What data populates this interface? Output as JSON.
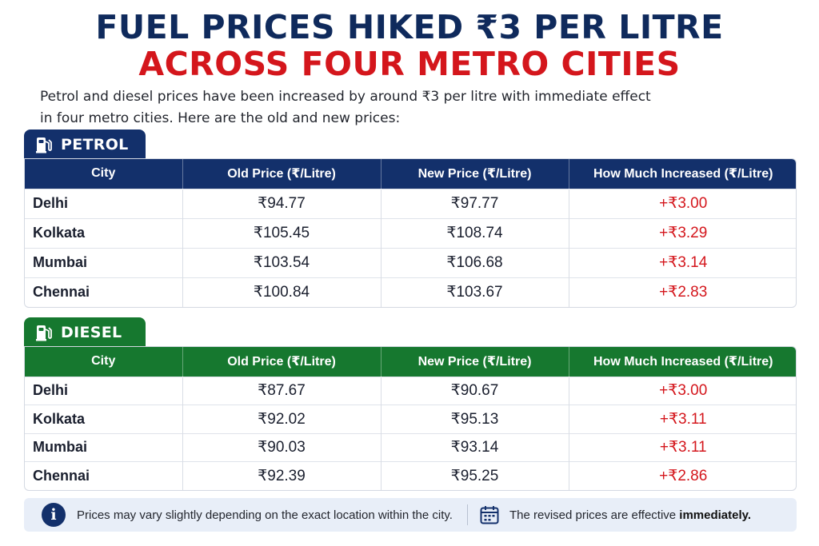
{
  "title_line1": "FUEL PRICES HIKED ₹3 PER LITRE",
  "title_line2": "ACROSS FOUR METRO CITIES",
  "intro_line1": "Petrol and diesel prices have been increased by around ₹3 per litre with immediate effect",
  "intro_line2": "in four metro cities. Here are the old and new prices:",
  "colors": {
    "navy": "#13306b",
    "green": "#16782f",
    "red": "#d4161c"
  },
  "petrol": {
    "label": "PETROL",
    "icon": "fuel-pump-icon",
    "headers": [
      "City",
      "Old Price (₹/Litre)",
      "New Price (₹/Litre)",
      "How Much Increased (₹/Litre)"
    ],
    "rows": [
      [
        "Delhi",
        "₹94.77",
        "₹97.77",
        "+₹3.00"
      ],
      [
        "Kolkata",
        "₹105.45",
        "₹108.74",
        "+₹3.29"
      ],
      [
        "Mumbai",
        "₹103.54",
        "₹106.68",
        "+₹3.14"
      ],
      [
        "Chennai",
        "₹100.84",
        "₹103.67",
        "+₹2.83"
      ]
    ]
  },
  "diesel": {
    "label": "DIESEL",
    "icon": "fuel-pump-icon",
    "headers": [
      "City",
      "Old Price (₹/Litre)",
      "New Price (₹/Litre)",
      "How Much Increased (₹/Litre)"
    ],
    "rows": [
      [
        "Delhi",
        "₹87.67",
        "₹90.67",
        "+₹3.00"
      ],
      [
        "Kolkata",
        "₹92.02",
        "₹95.13",
        "+₹3.11"
      ],
      [
        "Mumbai",
        "₹90.03",
        "₹93.14",
        "+₹3.11"
      ],
      [
        "Chennai",
        "₹92.39",
        "₹95.25",
        "+₹2.86"
      ]
    ]
  },
  "notes": {
    "info_icon": "info-icon",
    "info_text": "Prices may vary slightly depending on the exact location within the city.",
    "calendar_icon": "calendar-icon",
    "effective_prefix": "The revised prices are effective ",
    "effective_bold": "immediately."
  }
}
